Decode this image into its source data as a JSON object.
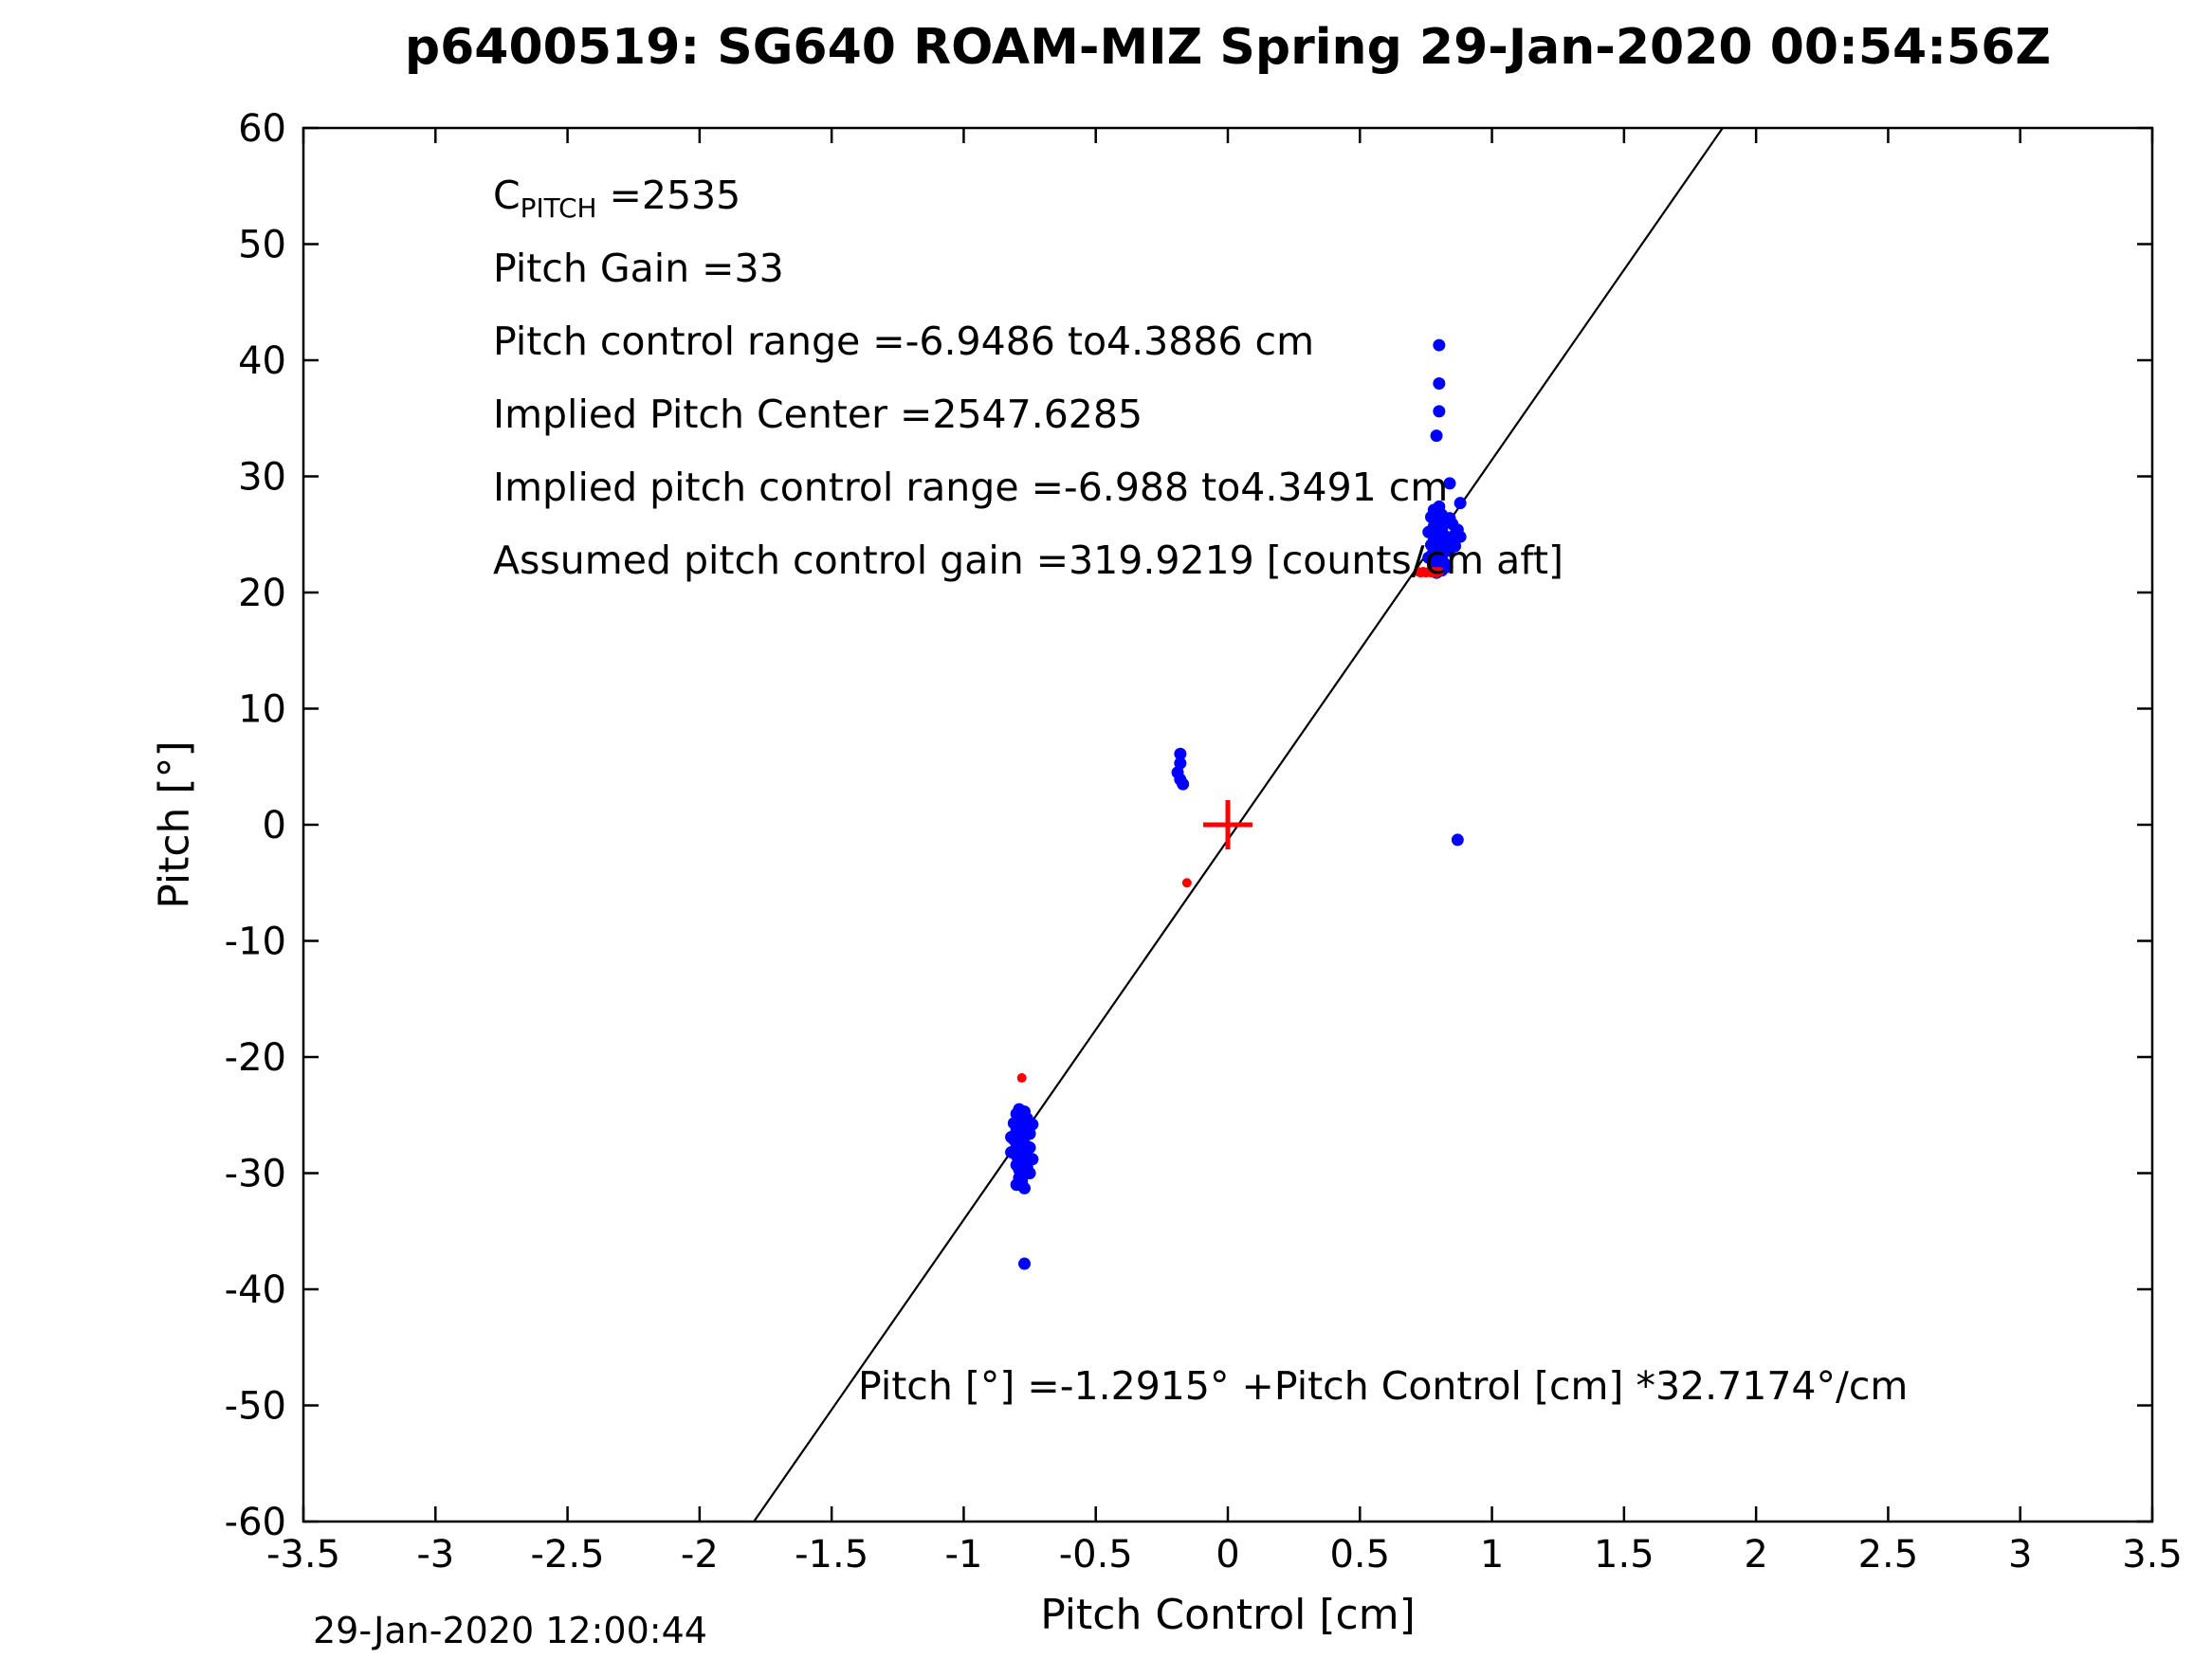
{
  "figure": {
    "date_stamp": "29-Jan-2020 12:00:44"
  },
  "chart_data": {
    "type": "scatter",
    "title": "p6400519: SG640 ROAM-MIZ Spring 29-Jan-2020 00:54:56Z",
    "xlabel": "Pitch Control [cm]",
    "ylabel": "Pitch [°]",
    "xlim": [
      -3.5,
      3.5
    ],
    "ylim": [
      -60,
      60
    ],
    "grid": false,
    "xticks": [
      -3.5,
      -3,
      -2.5,
      -2,
      -1.5,
      -1,
      -0.5,
      0,
      0.5,
      1,
      1.5,
      2,
      2.5,
      3,
      3.5
    ],
    "xtick_labels": [
      "-3.5",
      "-3",
      "-2.5",
      "-2",
      "-1.5",
      "-1",
      "-0.5",
      "0",
      "0.5",
      "1",
      "1.5",
      "2",
      "2.5",
      "3",
      "3.5"
    ],
    "yticks": [
      -60,
      -50,
      -40,
      -30,
      -20,
      -10,
      0,
      10,
      20,
      30,
      40,
      50,
      60
    ],
    "ytick_labels": [
      "-60",
      "-50",
      "-40",
      "-30",
      "-20",
      "-10",
      "0",
      "10",
      "20",
      "30",
      "40",
      "50",
      "60"
    ],
    "colors": {
      "blue": "#0000ff",
      "red": "#ff0000",
      "line": "#000000"
    },
    "fit_line": {
      "slope": 32.7174,
      "intercept": -1.2915
    },
    "origin_marker": {
      "x": 0,
      "y": 0,
      "type": "plus",
      "color": "#ff0000",
      "half_size": 26,
      "stroke_width": 5
    },
    "series": [
      {
        "name": "pitch-samples-blue",
        "color": "#0000ff",
        "marker": "dot",
        "size": 6.5,
        "points": [
          [
            -0.79,
            -24.5
          ],
          [
            -0.77,
            -24.7
          ],
          [
            -0.8,
            -24.9
          ],
          [
            -0.78,
            -25.1
          ],
          [
            -0.76,
            -25.3
          ],
          [
            -0.79,
            -25.5
          ],
          [
            -0.81,
            -25.7
          ],
          [
            -0.77,
            -25.9
          ],
          [
            -0.78,
            -26.1
          ],
          [
            -0.8,
            -26.3
          ],
          [
            -0.76,
            -26.5
          ],
          [
            -0.79,
            -26.7
          ],
          [
            -0.77,
            -26.9
          ],
          [
            -0.81,
            -27.1
          ],
          [
            -0.78,
            -27.3
          ],
          [
            -0.8,
            -27.5
          ],
          [
            -0.76,
            -27.7
          ],
          [
            -0.79,
            -27.9
          ],
          [
            -0.77,
            -28.1
          ],
          [
            -0.78,
            -28.3
          ],
          [
            -0.8,
            -28.5
          ],
          [
            -0.79,
            -28.7
          ],
          [
            -0.77,
            -28.9
          ],
          [
            -0.78,
            -29.1
          ],
          [
            -0.8,
            -29.3
          ],
          [
            -0.76,
            -29.5
          ],
          [
            -0.79,
            -29.7
          ],
          [
            -0.78,
            -29.9
          ],
          [
            -0.77,
            -30.1
          ],
          [
            -0.79,
            -30.4
          ],
          [
            -0.78,
            -30.7
          ],
          [
            -0.8,
            -31.0
          ],
          [
            -0.77,
            -31.3
          ],
          [
            -0.74,
            -25.8
          ],
          [
            -0.75,
            -26.6
          ],
          [
            -0.82,
            -26.9
          ],
          [
            -0.75,
            -27.8
          ],
          [
            -0.82,
            -28.2
          ],
          [
            -0.74,
            -28.8
          ],
          [
            -0.75,
            -30.0
          ],
          [
            -0.77,
            -37.8
          ],
          [
            0.79,
            21.7
          ],
          [
            0.81,
            21.9
          ],
          [
            0.78,
            22.1
          ],
          [
            0.8,
            22.3
          ],
          [
            0.82,
            22.5
          ],
          [
            0.79,
            22.7
          ],
          [
            0.77,
            22.9
          ],
          [
            0.81,
            23.1
          ],
          [
            0.78,
            23.3
          ],
          [
            0.8,
            23.5
          ],
          [
            0.82,
            23.7
          ],
          [
            0.79,
            23.9
          ],
          [
            0.77,
            24.1
          ],
          [
            0.81,
            24.3
          ],
          [
            0.78,
            24.5
          ],
          [
            0.8,
            24.7
          ],
          [
            0.82,
            24.9
          ],
          [
            0.79,
            25.1
          ],
          [
            0.77,
            25.3
          ],
          [
            0.81,
            25.5
          ],
          [
            0.78,
            25.7
          ],
          [
            0.8,
            25.9
          ],
          [
            0.82,
            26.1
          ],
          [
            0.79,
            26.3
          ],
          [
            0.77,
            26.5
          ],
          [
            0.81,
            26.7
          ],
          [
            0.8,
            26.9
          ],
          [
            0.78,
            27.1
          ],
          [
            0.8,
            27.4
          ],
          [
            0.84,
            23.6
          ],
          [
            0.85,
            24.4
          ],
          [
            0.86,
            25.0
          ],
          [
            0.87,
            25.4
          ],
          [
            0.85,
            25.9
          ],
          [
            0.84,
            26.4
          ],
          [
            0.86,
            24.0
          ],
          [
            0.88,
            24.8
          ],
          [
            0.76,
            23.0
          ],
          [
            0.76,
            25.2
          ],
          [
            0.83,
            22.2
          ],
          [
            0.8,
            41.3
          ],
          [
            0.8,
            38.0
          ],
          [
            0.8,
            35.6
          ],
          [
            0.79,
            33.5
          ],
          [
            0.84,
            29.4
          ],
          [
            0.88,
            27.7
          ],
          [
            0.87,
            -1.3
          ],
          [
            -0.18,
            6.1
          ],
          [
            -0.18,
            5.3
          ],
          [
            -0.19,
            4.5
          ],
          [
            -0.18,
            3.9
          ],
          [
            -0.17,
            3.5
          ]
        ]
      },
      {
        "name": "pitch-samples-red",
        "color": "#ff0000",
        "marker": "dot",
        "size": 5,
        "points": [
          [
            -0.78,
            -21.8
          ],
          [
            -0.155,
            -5.0
          ],
          [
            0.72,
            21.8
          ],
          [
            0.73,
            21.7
          ],
          [
            0.74,
            21.8
          ],
          [
            0.75,
            21.7
          ],
          [
            0.76,
            21.8
          ],
          [
            0.77,
            21.7
          ],
          [
            0.78,
            21.8
          ],
          [
            0.79,
            21.7
          ],
          [
            0.8,
            21.8
          ]
        ]
      }
    ],
    "annotations": {
      "cpitch": {
        "prefix": "C",
        "sub": "PITCH",
        "rest": " =2535"
      },
      "lines": [
        "Pitch Gain =33",
        "Pitch control range =-6.9486 to4.3886 cm",
        "Implied Pitch Center =2547.6285",
        "Implied pitch control range =-6.988 to4.3491 cm",
        "Assumed pitch control gain =319.9219 [counts/cm aft]"
      ],
      "equation": "Pitch [°] =-1.2915° +Pitch Control [cm] *32.7174°/cm"
    }
  }
}
